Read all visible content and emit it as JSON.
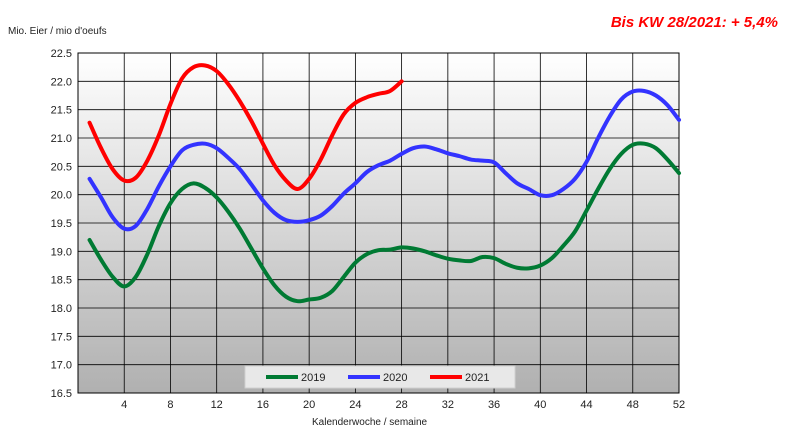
{
  "chart_data": {
    "type": "line",
    "title": "",
    "annotation": "Bis KW 28/2021: + 5,4%",
    "ylabel": "Mio. Eier / mio d'oeufs",
    "xlabel": "Kalenderwoche  / semaine",
    "xlim": [
      0,
      52
    ],
    "ylim": [
      16.5,
      22.5
    ],
    "x_ticks": [
      4,
      8,
      12,
      16,
      20,
      24,
      28,
      32,
      36,
      40,
      44,
      48,
      52
    ],
    "y_ticks": [
      "16.5",
      "17.0",
      "17.5",
      "18.0",
      "18.5",
      "19.0",
      "19.5",
      "20.0",
      "20.5",
      "21.0",
      "21.5",
      "22.0",
      "22.5"
    ],
    "grid": true,
    "legend_position": "bottom-center",
    "series": [
      {
        "name": "2019",
        "color": "#007a33",
        "points": [
          [
            1,
            19.2
          ],
          [
            2,
            18.85
          ],
          [
            3,
            18.55
          ],
          [
            4,
            18.38
          ],
          [
            5,
            18.55
          ],
          [
            6,
            18.95
          ],
          [
            7,
            19.45
          ],
          [
            8,
            19.85
          ],
          [
            9,
            20.1
          ],
          [
            10,
            20.2
          ],
          [
            11,
            20.12
          ],
          [
            12,
            19.95
          ],
          [
            13,
            19.7
          ],
          [
            14,
            19.4
          ],
          [
            15,
            19.05
          ],
          [
            16,
            18.7
          ],
          [
            17,
            18.4
          ],
          [
            18,
            18.2
          ],
          [
            19,
            18.12
          ],
          [
            20,
            18.15
          ],
          [
            21,
            18.18
          ],
          [
            22,
            18.3
          ],
          [
            23,
            18.55
          ],
          [
            24,
            18.8
          ],
          [
            25,
            18.95
          ],
          [
            26,
            19.02
          ],
          [
            27,
            19.03
          ],
          [
            28,
            19.07
          ],
          [
            29,
            19.05
          ],
          [
            30,
            19.0
          ],
          [
            31,
            18.93
          ],
          [
            32,
            18.87
          ],
          [
            33,
            18.84
          ],
          [
            34,
            18.83
          ],
          [
            35,
            18.9
          ],
          [
            36,
            18.88
          ],
          [
            37,
            18.78
          ],
          [
            38,
            18.71
          ],
          [
            39,
            18.7
          ],
          [
            40,
            18.75
          ],
          [
            41,
            18.88
          ],
          [
            42,
            19.1
          ],
          [
            43,
            19.35
          ],
          [
            44,
            19.72
          ],
          [
            45,
            20.1
          ],
          [
            46,
            20.45
          ],
          [
            47,
            20.72
          ],
          [
            48,
            20.88
          ],
          [
            49,
            20.9
          ],
          [
            50,
            20.82
          ],
          [
            51,
            20.62
          ],
          [
            52,
            20.38
          ]
        ]
      },
      {
        "name": "2020",
        "color": "#3333ff",
        "points": [
          [
            1,
            20.28
          ],
          [
            2,
            19.95
          ],
          [
            3,
            19.6
          ],
          [
            4,
            19.4
          ],
          [
            5,
            19.45
          ],
          [
            6,
            19.75
          ],
          [
            7,
            20.15
          ],
          [
            8,
            20.5
          ],
          [
            9,
            20.78
          ],
          [
            10,
            20.88
          ],
          [
            11,
            20.9
          ],
          [
            12,
            20.82
          ],
          [
            13,
            20.65
          ],
          [
            14,
            20.45
          ],
          [
            15,
            20.18
          ],
          [
            16,
            19.9
          ],
          [
            17,
            19.68
          ],
          [
            18,
            19.55
          ],
          [
            19,
            19.52
          ],
          [
            20,
            19.55
          ],
          [
            21,
            19.63
          ],
          [
            22,
            19.8
          ],
          [
            23,
            20.02
          ],
          [
            24,
            20.2
          ],
          [
            25,
            20.4
          ],
          [
            26,
            20.52
          ],
          [
            27,
            20.6
          ],
          [
            28,
            20.72
          ],
          [
            29,
            20.82
          ],
          [
            30,
            20.85
          ],
          [
            31,
            20.8
          ],
          [
            32,
            20.73
          ],
          [
            33,
            20.68
          ],
          [
            34,
            20.62
          ],
          [
            35,
            20.6
          ],
          [
            36,
            20.57
          ],
          [
            37,
            20.38
          ],
          [
            38,
            20.2
          ],
          [
            39,
            20.1
          ],
          [
            40,
            19.99
          ],
          [
            41,
            19.99
          ],
          [
            42,
            20.1
          ],
          [
            43,
            20.28
          ],
          [
            44,
            20.58
          ],
          [
            45,
            21.0
          ],
          [
            46,
            21.38
          ],
          [
            47,
            21.68
          ],
          [
            48,
            21.82
          ],
          [
            49,
            21.83
          ],
          [
            50,
            21.75
          ],
          [
            51,
            21.58
          ],
          [
            52,
            21.32
          ]
        ]
      },
      {
        "name": "2021",
        "color": "#ff0000",
        "points": [
          [
            1,
            21.27
          ],
          [
            2,
            20.82
          ],
          [
            3,
            20.45
          ],
          [
            4,
            20.25
          ],
          [
            5,
            20.3
          ],
          [
            6,
            20.6
          ],
          [
            7,
            21.05
          ],
          [
            8,
            21.6
          ],
          [
            9,
            22.05
          ],
          [
            10,
            22.25
          ],
          [
            11,
            22.28
          ],
          [
            12,
            22.18
          ],
          [
            13,
            21.95
          ],
          [
            14,
            21.65
          ],
          [
            15,
            21.3
          ],
          [
            16,
            20.9
          ],
          [
            17,
            20.52
          ],
          [
            18,
            20.25
          ],
          [
            19,
            20.1
          ],
          [
            20,
            20.28
          ],
          [
            21,
            20.62
          ],
          [
            22,
            21.05
          ],
          [
            23,
            21.42
          ],
          [
            24,
            21.62
          ],
          [
            25,
            21.72
          ],
          [
            26,
            21.78
          ],
          [
            27,
            21.83
          ],
          [
            28,
            22.0
          ]
        ]
      }
    ]
  }
}
